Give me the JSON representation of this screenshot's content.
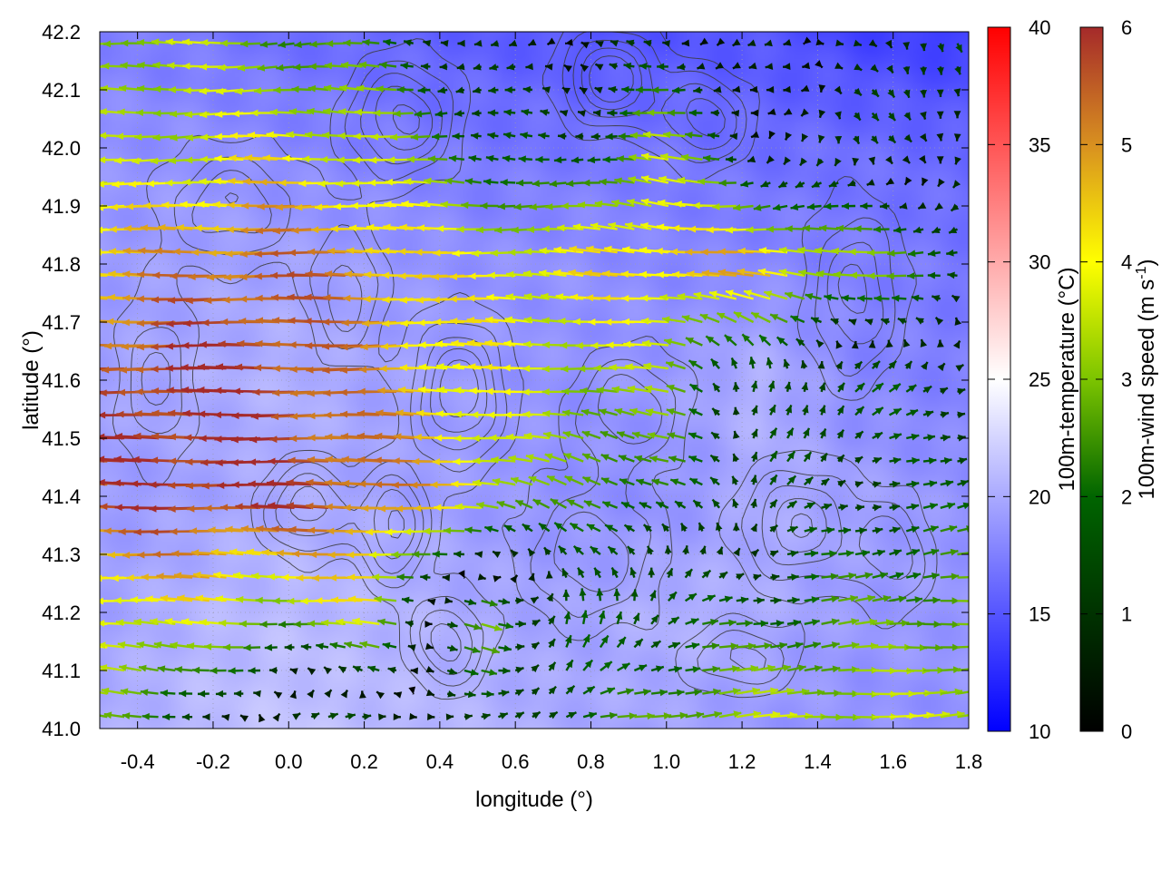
{
  "chart_data": {
    "type": "heatmap",
    "title": "",
    "xlabel": "longitude (°)",
    "ylabel": "latitude (°)",
    "xlim": [
      -0.5,
      1.8
    ],
    "ylim": [
      41.0,
      42.2
    ],
    "x_ticks": [
      -0.4,
      -0.2,
      0.0,
      0.2,
      0.4,
      0.6,
      0.8,
      1.0,
      1.2,
      1.4,
      1.6,
      1.8
    ],
    "x_tick_labels": [
      "-0.4",
      "-0.2",
      "0.0",
      "0.2",
      "0.4",
      "0.6",
      "0.8",
      "1.0",
      "1.2",
      "1.4",
      "1.6",
      "1.8"
    ],
    "y_ticks": [
      41.0,
      41.1,
      41.2,
      41.3,
      41.4,
      41.5,
      41.6,
      41.7,
      41.8,
      41.9,
      42.0,
      42.1,
      42.2
    ],
    "y_tick_labels": [
      "41.0",
      "41.1",
      "41.2",
      "41.3",
      "41.4",
      "41.5",
      "41.6",
      "41.7",
      "41.8",
      "41.9",
      "42.0",
      "42.1",
      "42.2"
    ],
    "grid": true,
    "layers": [
      {
        "kind": "filled-field",
        "quantity": "100m-temperature"
      },
      {
        "kind": "contour",
        "quantity": "terrain elevation",
        "color": "#444444"
      },
      {
        "kind": "vectors",
        "quantity": "100m-wind",
        "colored_by": "100m-wind speed"
      }
    ],
    "colorbars": [
      {
        "label": "100m-temperature (°C)",
        "range": [
          10,
          40
        ],
        "ticks": [
          10,
          15,
          20,
          25,
          30,
          35,
          40
        ],
        "tick_labels": [
          "10",
          "15",
          "20",
          "25",
          "30",
          "35",
          "40"
        ],
        "colors": [
          "#0000ff",
          "#ffffff",
          "#ff0000"
        ]
      },
      {
        "label_main": "100m-wind speed (m s",
        "label_sup": "-1",
        "label_end": ")",
        "range": [
          0,
          6
        ],
        "ticks": [
          0,
          1,
          2,
          3,
          4,
          5,
          6
        ],
        "tick_labels": [
          "0",
          "1",
          "2",
          "3",
          "4",
          "5",
          "6"
        ],
        "colors": [
          "#000000",
          "#006400",
          "#7cc400",
          "#ffff00",
          "#d89020",
          "#a52a2a"
        ]
      }
    ],
    "temperature_field": {
      "x": [
        -0.5,
        -0.25,
        0.0,
        0.25,
        0.5,
        0.75,
        1.0,
        1.25,
        1.5,
        1.8
      ],
      "y": [
        41.0,
        41.2,
        41.4,
        41.6,
        41.8,
        42.0,
        42.2
      ],
      "values": [
        [
          20.0,
          21.0,
          21.5,
          21.0,
          20.5,
          20.0,
          19.5,
          19.0,
          18.5,
          18.5
        ],
        [
          19.5,
          20.5,
          21.0,
          20.5,
          20.0,
          19.5,
          20.5,
          20.0,
          19.0,
          19.0
        ],
        [
          19.0,
          19.5,
          20.0,
          19.5,
          19.0,
          18.5,
          18.5,
          20.0,
          19.5,
          18.5
        ],
        [
          19.5,
          20.0,
          20.5,
          19.5,
          19.0,
          18.5,
          19.0,
          20.5,
          18.0,
          17.5
        ],
        [
          19.0,
          19.5,
          19.5,
          19.0,
          18.5,
          18.5,
          18.0,
          18.0,
          17.5,
          17.0
        ],
        [
          18.5,
          18.5,
          18.0,
          17.5,
          17.0,
          17.0,
          17.0,
          16.5,
          16.5,
          16.0
        ],
        [
          17.5,
          17.0,
          16.5,
          16.0,
          15.5,
          15.0,
          15.0,
          15.0,
          14.0,
          13.5
        ]
      ]
    },
    "wind_field": {
      "x": [
        -0.5,
        -0.25,
        0.0,
        0.25,
        0.5,
        0.75,
        1.0,
        1.25,
        1.5,
        1.8
      ],
      "y": [
        41.0,
        41.2,
        41.4,
        41.6,
        41.8,
        42.0,
        42.2
      ],
      "u": [
        [
          -2.5,
          -1.5,
          1.5,
          1.5,
          0.5,
          2.0,
          3.0,
          3.5,
          3.5,
          3.5
        ],
        [
          -4.0,
          -4.0,
          -3.0,
          -4.0,
          3.5,
          -0.5,
          1.5,
          2.0,
          2.5,
          3.0
        ],
        [
          -5.5,
          -6.0,
          -6.0,
          -5.5,
          -4.5,
          -2.0,
          -2.5,
          0.5,
          1.5,
          1.5
        ],
        [
          -5.5,
          -6.0,
          -6.0,
          -5.0,
          -4.0,
          -3.5,
          -3.0,
          0.3,
          1.0,
          1.5
        ],
        [
          -4.5,
          -5.0,
          -5.5,
          -5.0,
          -4.0,
          -4.0,
          -4.5,
          -5.0,
          -3.5,
          -2.0
        ],
        [
          -3.0,
          -3.5,
          -4.0,
          -3.5,
          -2.0,
          -1.0,
          -3.5,
          -0.5,
          0.5,
          0.3
        ],
        [
          -3.0,
          -3.5,
          -2.5,
          -2.0,
          -0.5,
          -0.5,
          -0.5,
          -0.5,
          0.5,
          0.5
        ]
      ],
      "v": [
        [
          0.3,
          0.3,
          0.2,
          0.3,
          0.2,
          0.5,
          0.3,
          0.2,
          0.2,
          0.2
        ],
        [
          0.2,
          0.2,
          0.2,
          0.3,
          -0.8,
          2.0,
          1.0,
          0.3,
          0.2,
          0.2
        ],
        [
          0.1,
          0.1,
          0.1,
          0.1,
          0.3,
          1.0,
          1.0,
          1.0,
          0.5,
          0.3
        ],
        [
          0.1,
          0.0,
          0.0,
          0.0,
          0.1,
          0.2,
          0.2,
          2.0,
          1.0,
          0.5
        ],
        [
          0.0,
          0.0,
          0.0,
          0.0,
          0.1,
          0.2,
          0.5,
          0.3,
          0.2,
          0.1
        ],
        [
          0.0,
          0.0,
          0.0,
          0.2,
          0.0,
          0.0,
          0.5,
          -0.5,
          -0.8,
          -1.0
        ],
        [
          0.0,
          0.0,
          0.0,
          0.0,
          0.0,
          0.0,
          0.0,
          0.0,
          -0.5,
          -1.0
        ]
      ]
    },
    "terrain_contours": {
      "levels": [
        0.15,
        0.3,
        0.45,
        0.6,
        0.75
      ],
      "peaks": [
        {
          "lon": 0.05,
          "lat": 41.38,
          "h": 0.7,
          "sx": 0.12,
          "sy": 0.08
        },
        {
          "lon": 0.28,
          "lat": 41.35,
          "h": 0.8,
          "sx": 0.09,
          "sy": 0.1
        },
        {
          "lon": 0.45,
          "lat": 41.58,
          "h": 0.9,
          "sx": 0.12,
          "sy": 0.12
        },
        {
          "lon": 0.42,
          "lat": 41.15,
          "h": 0.7,
          "sx": 0.1,
          "sy": 0.08
        },
        {
          "lon": 0.8,
          "lat": 41.3,
          "h": 0.6,
          "sx": 0.18,
          "sy": 0.12
        },
        {
          "lon": 0.9,
          "lat": 41.55,
          "h": 0.6,
          "sx": 0.15,
          "sy": 0.1
        },
        {
          "lon": 0.85,
          "lat": 42.12,
          "h": 0.95,
          "sx": 0.12,
          "sy": 0.08
        },
        {
          "lon": 0.3,
          "lat": 42.05,
          "h": 0.8,
          "sx": 0.14,
          "sy": 0.1
        },
        {
          "lon": -0.15,
          "lat": 41.9,
          "h": 0.6,
          "sx": 0.18,
          "sy": 0.1
        },
        {
          "lon": 1.35,
          "lat": 41.35,
          "h": 0.75,
          "sx": 0.15,
          "sy": 0.1
        },
        {
          "lon": 1.5,
          "lat": 41.75,
          "h": 0.65,
          "sx": 0.12,
          "sy": 0.15
        },
        {
          "lon": 1.6,
          "lat": 41.3,
          "h": 0.55,
          "sx": 0.1,
          "sy": 0.1
        },
        {
          "lon": 1.1,
          "lat": 42.05,
          "h": 0.7,
          "sx": 0.12,
          "sy": 0.08
        },
        {
          "lon": -0.35,
          "lat": 41.6,
          "h": 0.5,
          "sx": 0.1,
          "sy": 0.15
        },
        {
          "lon": 0.15,
          "lat": 41.75,
          "h": 0.55,
          "sx": 0.1,
          "sy": 0.12
        },
        {
          "lon": 1.2,
          "lat": 41.12,
          "h": 0.5,
          "sx": 0.15,
          "sy": 0.06
        }
      ]
    }
  }
}
